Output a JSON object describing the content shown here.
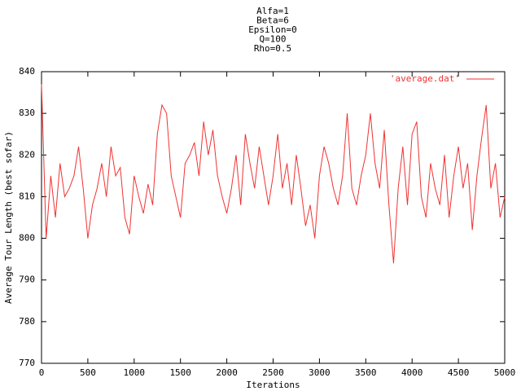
{
  "chart_data": {
    "type": "line",
    "title_lines": [
      "Alfa=1",
      "Beta=6",
      "Epsilon=0",
      "Q=100",
      "Rho=0.5"
    ],
    "xlabel": "Iterations",
    "ylabel": "Average Tour Length (best sofar)",
    "legend": "top-right",
    "x": [
      0,
      50,
      100,
      150,
      200,
      250,
      300,
      350,
      400,
      450,
      500,
      550,
      600,
      650,
      700,
      750,
      800,
      850,
      900,
      950,
      1000,
      1050,
      1100,
      1150,
      1200,
      1250,
      1300,
      1350,
      1400,
      1450,
      1500,
      1550,
      1600,
      1650,
      1700,
      1750,
      1800,
      1850,
      1900,
      1950,
      2000,
      2050,
      2100,
      2150,
      2200,
      2250,
      2300,
      2350,
      2400,
      2450,
      2500,
      2550,
      2600,
      2650,
      2700,
      2750,
      2800,
      2850,
      2900,
      2950,
      3000,
      3050,
      3100,
      3150,
      3200,
      3250,
      3300,
      3350,
      3400,
      3450,
      3500,
      3550,
      3600,
      3650,
      3700,
      3750,
      3800,
      3850,
      3900,
      3950,
      4000,
      4050,
      4100,
      4150,
      4200,
      4250,
      4300,
      4350,
      4400,
      4450,
      4500,
      4550,
      4600,
      4650,
      4700,
      4750,
      4800,
      4850,
      4900,
      4950,
      5000
    ],
    "series": [
      {
        "name": "'average.dat'",
        "color": "#f03232",
        "values": [
          837,
          800,
          815,
          805,
          818,
          810,
          812,
          815,
          822,
          812,
          800,
          808,
          812,
          818,
          810,
          822,
          815,
          817,
          805,
          801,
          815,
          810,
          806,
          813,
          808,
          825,
          832,
          830,
          815,
          810,
          805,
          818,
          820,
          823,
          815,
          828,
          820,
          826,
          815,
          810,
          806,
          812,
          820,
          808,
          825,
          818,
          812,
          822,
          815,
          808,
          815,
          825,
          812,
          818,
          808,
          820,
          812,
          803,
          808,
          800,
          815,
          822,
          818,
          812,
          808,
          815,
          830,
          812,
          808,
          815,
          820,
          830,
          818,
          812,
          826,
          808,
          794,
          812,
          822,
          808,
          825,
          828,
          810,
          805,
          818,
          812,
          808,
          820,
          805,
          815,
          822,
          812,
          818,
          802,
          815,
          824,
          832,
          812,
          818,
          805,
          810
        ]
      }
    ],
    "xlim": [
      0,
      5000
    ],
    "xticks": [
      0,
      500,
      1000,
      1500,
      2000,
      2500,
      3000,
      3500,
      4000,
      4500,
      5000
    ],
    "ylim": [
      770,
      840
    ],
    "yticks": [
      770,
      780,
      790,
      800,
      810,
      820,
      830,
      840
    ]
  }
}
